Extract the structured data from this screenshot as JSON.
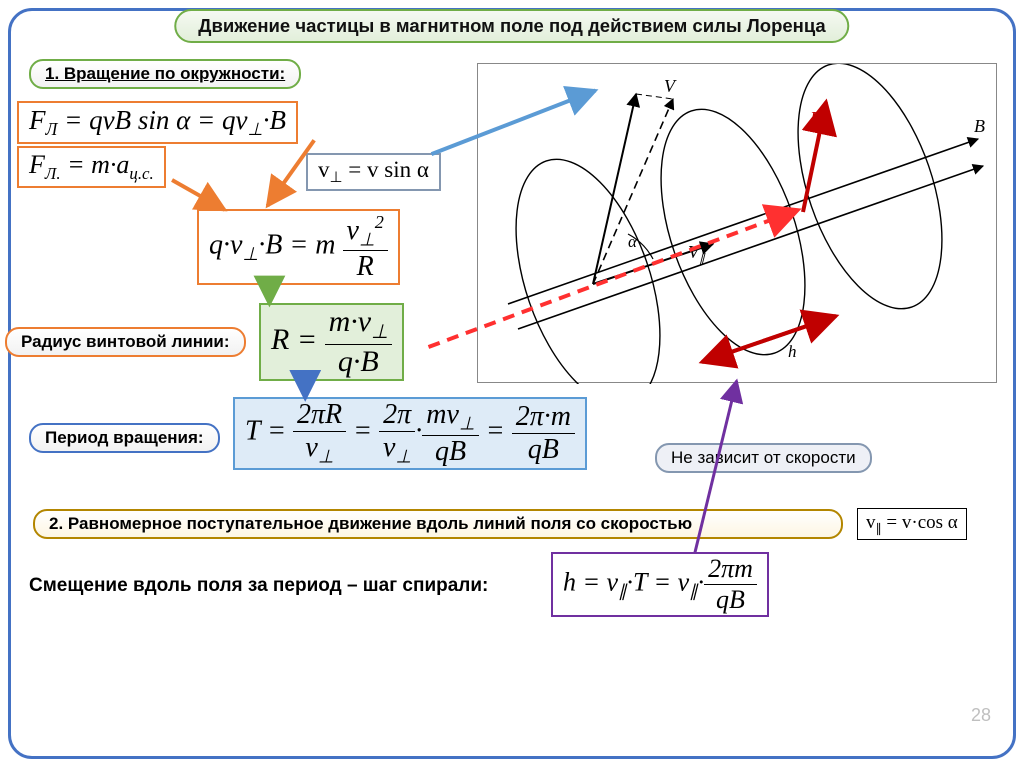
{
  "title": "Движение частицы в магнитном поле под действием силы Лоренца",
  "section1_label": "1. Вращение по окружности:",
  "formulas": {
    "lorentz": "F<sub>Л</sub> = qvB sin α = qv<sub>⊥</sub>·B",
    "centripetal": "F<sub>Л.</sub> = m·a<sub>ц.с.</sub>",
    "vperp": "v<sub>⊥</sub> = v sin α",
    "balance": "q·v<sub>⊥</sub>·B = m <span class='frac'><span>v<sub>⊥</sub><sup>2</sup></span><span>R</span></span>",
    "radius": "R = <span class='frac'><span>m·v<sub>⊥</sub></span><span>q·B</span></span>",
    "period": "T = <span class='frac'><span>2πR</span><span>v<sub>⊥</sub></span></span> = <span class='frac'><span>2π</span><span>v<sub>⊥</sub></span></span>·<span class='frac'><span>mv<sub>⊥</sub></span><span>qB</span></span> = <span class='frac'><span>2π·m</span><span>qB</span></span>",
    "vpar": "v<sub>∥</sub> = v·cos α",
    "pitch": "h = v<sub>∥</sub>·T = v<sub>∥</sub>·<span class='frac'><span>2πm</span><span>qB</span></span>"
  },
  "labels": {
    "radius": "Радиус винтовой линии:",
    "period": "Период вращения:",
    "indep": "Не зависит от скорости",
    "section2": "2. Равномерное поступательное движение вдоль линий поля со скоростью",
    "pitch": "Смещение вдоль поля за период – шаг спирали:"
  },
  "diagram": {
    "V": "V",
    "Vpar": "V<sub>∥</sub>",
    "B": "B",
    "R": "R",
    "h": "h",
    "alpha": "α"
  },
  "page_number": "28",
  "colors": {
    "frame": "#4472c4",
    "green": "#70ad47",
    "orange": "#ed7d31",
    "blue": "#5b9bd5",
    "purple": "#7030a0",
    "steel": "#8497b0",
    "darkred": "#c00000",
    "red": "#ff3030"
  }
}
